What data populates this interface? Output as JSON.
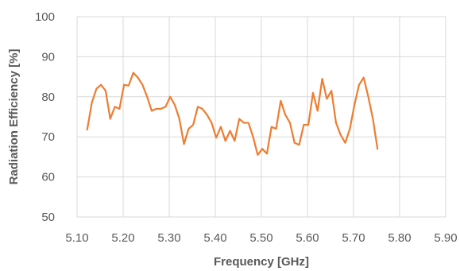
{
  "chart_data": {
    "type": "line",
    "title": "",
    "xlabel": "Frequency [GHz]",
    "ylabel": "Radiation Efficiency [%]",
    "xlim": [
      5.1,
      5.9
    ],
    "ylim": [
      50,
      100
    ],
    "x_ticks": [
      "5.10",
      "5.20",
      "5.30",
      "5.40",
      "5.50",
      "5.60",
      "5.70",
      "5.80",
      "5.90"
    ],
    "y_ticks": [
      "50",
      "60",
      "70",
      "80",
      "90",
      "100"
    ],
    "grid": true,
    "legend": "none",
    "series": [
      {
        "color": "#ed7d31",
        "x": [
          5.122,
          5.132,
          5.142,
          5.152,
          5.162,
          5.172,
          5.182,
          5.192,
          5.202,
          5.212,
          5.222,
          5.232,
          5.242,
          5.252,
          5.262,
          5.272,
          5.282,
          5.292,
          5.302,
          5.312,
          5.322,
          5.332,
          5.342,
          5.352,
          5.362,
          5.372,
          5.382,
          5.392,
          5.402,
          5.412,
          5.422,
          5.432,
          5.442,
          5.452,
          5.462,
          5.472,
          5.482,
          5.492,
          5.502,
          5.512,
          5.522,
          5.532,
          5.542,
          5.552,
          5.562,
          5.572,
          5.582,
          5.592,
          5.602,
          5.612,
          5.622,
          5.632,
          5.642,
          5.652,
          5.662,
          5.672,
          5.682,
          5.692,
          5.702,
          5.712,
          5.722,
          5.732,
          5.742,
          5.752,
          5.762,
          5.772,
          5.782,
          5.792,
          5.802,
          5.812,
          5.822,
          5.832,
          5.842,
          5.852,
          5.862,
          5.872,
          5.88
        ],
        "y": [
          71.8,
          78.5,
          82.0,
          83.0,
          81.5,
          74.5,
          77.5,
          77.0,
          83.0,
          82.8,
          86.0,
          84.8,
          83.0,
          80.0,
          76.5,
          77.0,
          77.0,
          77.5,
          80.0,
          78.0,
          74.5,
          68.2,
          72.0,
          73.0,
          77.5,
          77.0,
          75.5,
          73.5,
          69.8,
          72.5,
          69.0,
          71.5,
          69.0,
          74.5,
          73.5,
          73.5,
          70.0,
          65.5,
          67.0,
          65.8,
          72.5,
          72.0,
          79.0,
          75.5,
          73.5,
          68.5,
          68.0,
          73.0,
          73.0,
          81.0,
          76.5,
          84.5,
          79.5,
          81.5,
          73.5,
          70.5,
          68.5,
          72.0,
          78.0,
          83.0,
          84.8,
          80.0,
          74.5,
          67.0,
          null,
          null,
          null,
          null,
          null,
          null,
          null,
          null,
          null,
          null,
          null,
          null,
          null
        ]
      }
    ]
  }
}
